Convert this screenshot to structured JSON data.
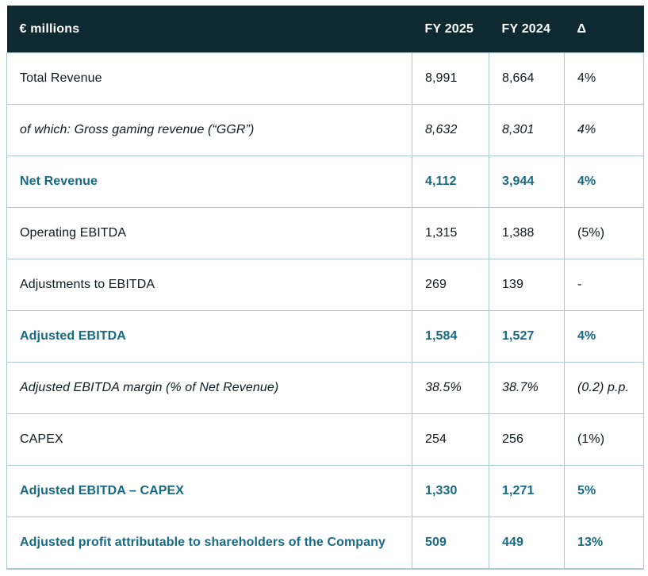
{
  "table": {
    "columns": [
      "€ millions",
      "FY 2025",
      "FY 2024",
      "Δ"
    ],
    "rows": [
      {
        "label": "Total Revenue",
        "fy2025": "8,991",
        "fy2024": "8,664",
        "delta": "4%",
        "style": "normal"
      },
      {
        "label": "of which: Gross gaming revenue (“GGR”)",
        "fy2025": "8,632",
        "fy2024": "8,301",
        "delta": "4%",
        "style": "italic"
      },
      {
        "label": "Net Revenue",
        "fy2025": "4,112",
        "fy2024": "3,944",
        "delta": "4%",
        "style": "highlight"
      },
      {
        "label": "Operating EBITDA",
        "fy2025": "1,315",
        "fy2024": "1,388",
        "delta": "(5%)",
        "style": "normal"
      },
      {
        "label": "Adjustments to EBITDA",
        "fy2025": "269",
        "fy2024": "139",
        "delta": "-",
        "style": "normal"
      },
      {
        "label": "Adjusted EBITDA",
        "fy2025": "1,584",
        "fy2024": "1,527",
        "delta": "4%",
        "style": "highlight"
      },
      {
        "label": "Adjusted EBITDA margin (% of Net Revenue)",
        "fy2025": "38.5%",
        "fy2024": "38.7%",
        "delta": "(0.2) p.p.",
        "style": "italic"
      },
      {
        "label": "CAPEX",
        "fy2025": "254",
        "fy2024": "256",
        "delta": "(1%)",
        "style": "normal"
      },
      {
        "label": "Adjusted EBITDA – CAPEX",
        "fy2025": "1,330",
        "fy2024": "1,271",
        "delta": "5%",
        "style": "highlight"
      },
      {
        "label": "Adjusted profit attributable to shareholders of the Company",
        "fy2025": "509",
        "fy2024": "449",
        "delta": "13%",
        "style": "highlight"
      }
    ]
  },
  "colors": {
    "header_bg": "#0d2a31",
    "accent_teal": "#176a83",
    "border": "#abc8d1",
    "text": "#10191d"
  }
}
